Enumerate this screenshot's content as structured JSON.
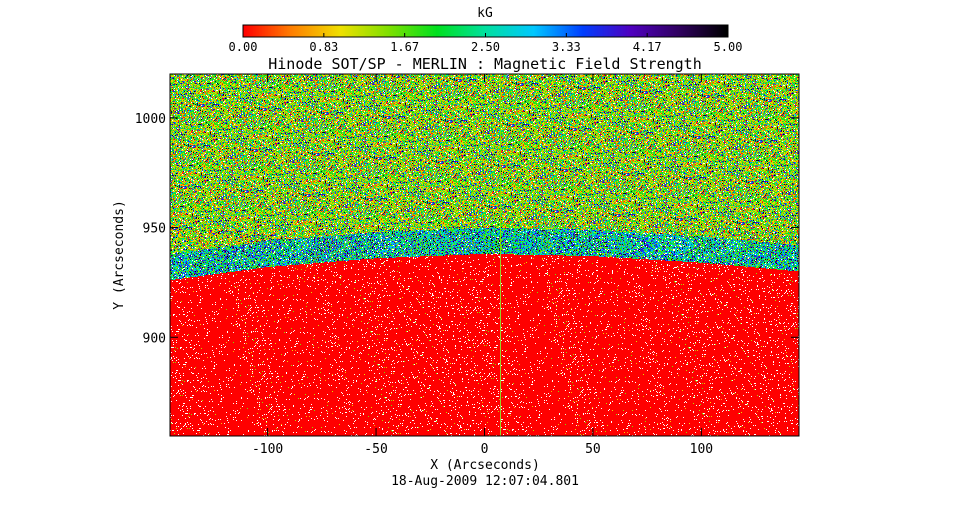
{
  "chart_data": {
    "type": "heatmap",
    "title": "Hinode SOT/SP - MERLIN : Magnetic Field Strength",
    "xlabel": "X (Arcseconds)",
    "ylabel": "Y (Arcseconds)",
    "subtitle": "18-Aug-2009 12:07:04.801",
    "xlim": [
      -145,
      145
    ],
    "ylim": [
      855,
      1020
    ],
    "xticks": [
      -100,
      -50,
      0,
      50,
      100
    ],
    "yticks": [
      900,
      950,
      1000
    ],
    "limb": {
      "x": [
        -145,
        -100,
        -50,
        0,
        50,
        100,
        145
      ],
      "y": [
        926,
        932,
        936,
        938,
        937,
        934,
        930
      ]
    },
    "slit_x": 7,
    "colorbar": {
      "label": "kG",
      "range": [
        0,
        5
      ],
      "tick_labels": [
        "0.00",
        "0.83",
        "1.67",
        "2.50",
        "3.33",
        "4.17",
        "5.00"
      ],
      "colors": [
        "#ff0000",
        "#ff8000",
        "#f0e000",
        "#80e000",
        "#00e020",
        "#00e0a0",
        "#00c8ff",
        "#0040ff",
        "#5000c0",
        "#300060",
        "#000000"
      ]
    }
  }
}
